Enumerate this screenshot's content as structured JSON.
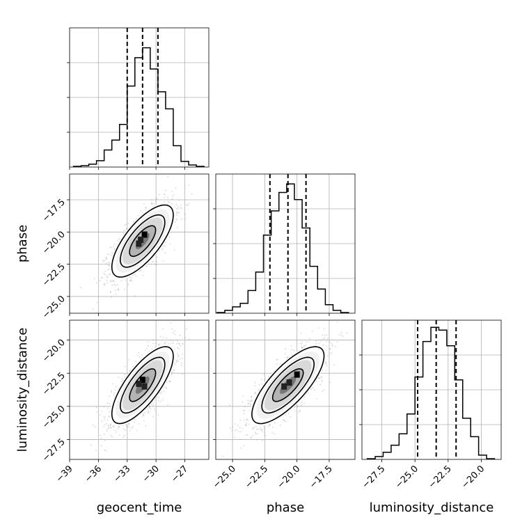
{
  "chart_data": {
    "type": "corner",
    "parameters": [
      "geocent_time",
      "phase",
      "luminosity_distance"
    ],
    "ranges": {
      "geocent_time": [
        -39.0,
        -24.5
      ],
      "phase": [
        -26.3,
        -15.5
      ],
      "luminosity_distance": [
        -29.0,
        -18.5
      ]
    },
    "ticks": {
      "geocent_time": [
        -39,
        -36,
        -33,
        -30,
        -27
      ],
      "phase": [
        -25.0,
        -22.5,
        -20.0,
        -17.5
      ],
      "luminosity_distance": [
        -27.5,
        -25.0,
        -22.5,
        -20.0
      ]
    },
    "tick_labels": {
      "geocent_time": [
        "−39",
        "−36",
        "−33",
        "−30",
        "−27"
      ],
      "phase": [
        "−25.0",
        "−22.5",
        "−20.0",
        "−17.5"
      ],
      "luminosity_distance": [
        "−27.5",
        "−25.0",
        "−22.5",
        "−20.0"
      ]
    },
    "xlabels": [
      "geocent_time",
      "phase",
      "luminosity_distance"
    ],
    "ylabels": [
      "",
      "phase",
      "luminosity_distance"
    ],
    "marginals": {
      "geocent_time": {
        "bin_width": 0.8,
        "bins": [
          [
            -38.2,
            0.005
          ],
          [
            -37.4,
            0.01
          ],
          [
            -36.6,
            0.02
          ],
          [
            -35.8,
            0.045
          ],
          [
            -35.0,
            0.12
          ],
          [
            -34.2,
            0.19
          ],
          [
            -33.4,
            0.3
          ],
          [
            -32.6,
            0.57
          ],
          [
            -31.8,
            0.77
          ],
          [
            -31.0,
            0.84
          ],
          [
            -30.2,
            0.69
          ],
          [
            -29.4,
            0.53
          ],
          [
            -28.6,
            0.41
          ],
          [
            -27.8,
            0.15
          ],
          [
            -27.0,
            0.04
          ],
          [
            -26.2,
            0.015
          ],
          [
            -25.4,
            0.005
          ]
        ],
        "quantiles": [
          -33.0,
          -31.4,
          -29.8
        ],
        "ymax": 0.98
      },
      "phase": {
        "bin_width": 0.6,
        "bins": [
          [
            -25.9,
            0.005
          ],
          [
            -25.3,
            0.02
          ],
          [
            -24.7,
            0.045
          ],
          [
            -24.1,
            0.07
          ],
          [
            -23.5,
            0.16
          ],
          [
            -22.9,
            0.29
          ],
          [
            -22.3,
            0.55
          ],
          [
            -21.7,
            0.72
          ],
          [
            -21.1,
            0.85
          ],
          [
            -20.5,
            0.91
          ],
          [
            -19.9,
            0.8
          ],
          [
            -19.3,
            0.6
          ],
          [
            -18.7,
            0.33
          ],
          [
            -18.1,
            0.17
          ],
          [
            -17.5,
            0.06
          ],
          [
            -16.9,
            0.02
          ],
          [
            -16.3,
            0.005
          ]
        ],
        "quantiles": [
          -22.1,
          -20.7,
          -19.3
        ],
        "ymax": 0.98
      },
      "luminosity_distance": {
        "bin_width": 0.6,
        "bins": [
          [
            -28.3,
            0.005
          ],
          [
            -27.7,
            0.02
          ],
          [
            -27.1,
            0.05
          ],
          [
            -26.5,
            0.1
          ],
          [
            -25.9,
            0.18
          ],
          [
            -25.3,
            0.32
          ],
          [
            -24.7,
            0.58
          ],
          [
            -24.1,
            0.83
          ],
          [
            -23.5,
            0.93
          ],
          [
            -22.9,
            0.91
          ],
          [
            -22.3,
            0.8
          ],
          [
            -21.7,
            0.56
          ],
          [
            -21.1,
            0.29
          ],
          [
            -20.5,
            0.16
          ],
          [
            -19.9,
            0.03
          ],
          [
            -19.3,
            0.005
          ]
        ],
        "quantiles": [
          -24.8,
          -23.4,
          -21.9
        ],
        "ymax": 0.98
      }
    },
    "joints": [
      {
        "x": "geocent_time",
        "y": "phase",
        "center": [
          -31.4,
          -20.7
        ],
        "sigma": [
          1.6,
          1.4
        ],
        "corr": 0.72,
        "peak_cells": [
          [
            -31.2,
            -20.2
          ],
          [
            -31.6,
            -20.6
          ],
          [
            -31.8,
            -20.9
          ]
        ]
      },
      {
        "x": "geocent_time",
        "y": "luminosity_distance",
        "center": [
          -31.4,
          -23.4
        ],
        "sigma": [
          1.6,
          1.45
        ],
        "corr": 0.75,
        "peak_cells": [
          [
            -31.4,
            -23.0
          ],
          [
            -31.8,
            -23.3
          ],
          [
            -31.2,
            -23.5
          ]
        ]
      },
      {
        "x": "phase",
        "y": "luminosity_distance",
        "center": [
          -20.7,
          -23.4
        ],
        "sigma": [
          1.4,
          1.45
        ],
        "corr": 0.76,
        "peak_cells": [
          [
            -20.0,
            -22.6
          ],
          [
            -20.6,
            -23.2
          ],
          [
            -21.0,
            -23.5
          ]
        ]
      }
    ],
    "grid": true,
    "legend": "none"
  }
}
